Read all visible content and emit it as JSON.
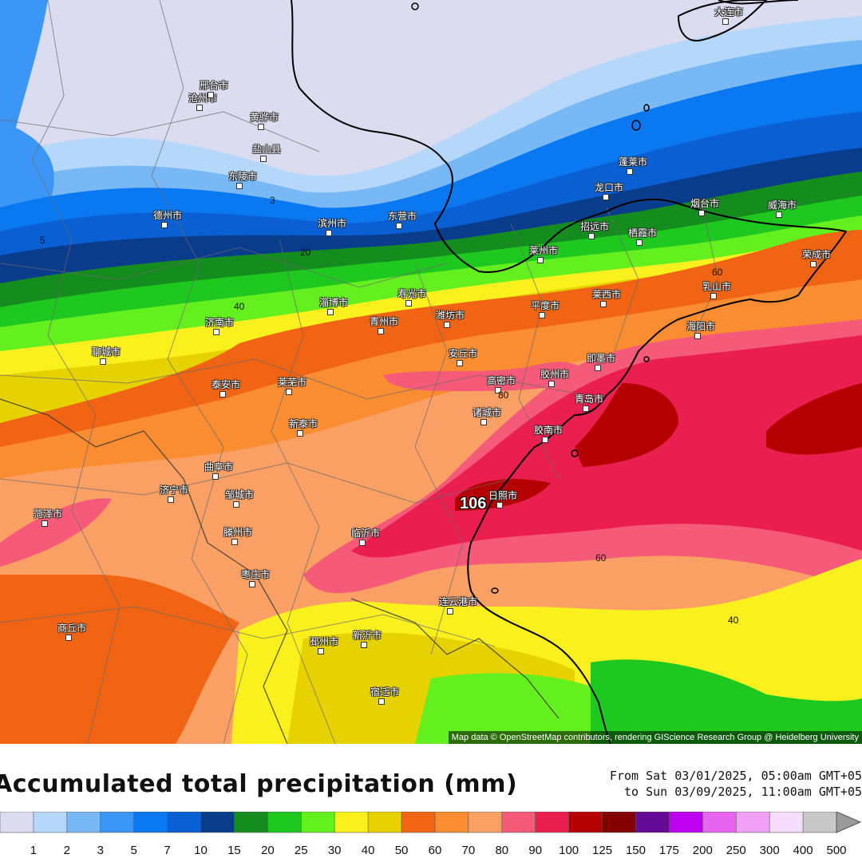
{
  "map": {
    "attribution": "Map data © OpenStreetMap contributors, rendering GIScience Research Group @ Heidelberg University",
    "max_value_label": "106",
    "contour_labels": [
      "5",
      "3",
      "20",
      "40",
      "60",
      "80",
      "60",
      "40"
    ],
    "cities": [
      "大连市",
      "蓬莱市",
      "龙口市",
      "烟台市",
      "威海市",
      "招远市",
      "栖霞市",
      "荣成市",
      "莱州市",
      "乳山市",
      "平度市",
      "莱西市",
      "海阳市",
      "即墨市",
      "青岛市",
      "胶州市",
      "胶南市",
      "高密市",
      "安丘市",
      "诸城市",
      "日照市",
      "临沂市",
      "潍坊市",
      "寿光市",
      "青州市",
      "淄博市",
      "东营市",
      "滨州市",
      "德州市",
      "济南市",
      "泰安市",
      "莱芜市",
      "新泰市",
      "曲阜市",
      "邹城市",
      "济宁市",
      "滕州市",
      "枣庄市",
      "菏泽市",
      "聊城市",
      "连云港市",
      "新沂市",
      "邳州市",
      "宿迁市",
      "商丘市",
      "沧州市",
      "黄骅市",
      "盐山县",
      "东陵市",
      "邢台市"
    ]
  },
  "title": "Accumulated total precipitation (mm)",
  "period": {
    "from": "From Sat 03/01/2025, 05:00am GMT+05",
    "to": "to Sun 03/09/2025, 11:00am GMT+05"
  },
  "legend": {
    "labels": [
      "1",
      "2",
      "3",
      "5",
      "7",
      "10",
      "15",
      "20",
      "25",
      "30",
      "40",
      "50",
      "60",
      "70",
      "80",
      "90",
      "100",
      "125",
      "150",
      "175",
      "200",
      "250",
      "300",
      "400",
      "500"
    ],
    "colors": [
      "#dcdcf0",
      "#b4d7fa",
      "#78b9f5",
      "#3c96f5",
      "#0a78f0",
      "#0a5fd2",
      "#0a3c8c",
      "#148c1e",
      "#1ec81e",
      "#64f01e",
      "#faf01e",
      "#e6d200",
      "#f06414",
      "#fa8c32",
      "#faa064",
      "#f55a78",
      "#eb1e50",
      "#b40000",
      "#820000",
      "#640a96",
      "#be00f0",
      "#e664f0",
      "#f0a0f5",
      "#f5dcfa",
      "#c8c8c8"
    ]
  }
}
